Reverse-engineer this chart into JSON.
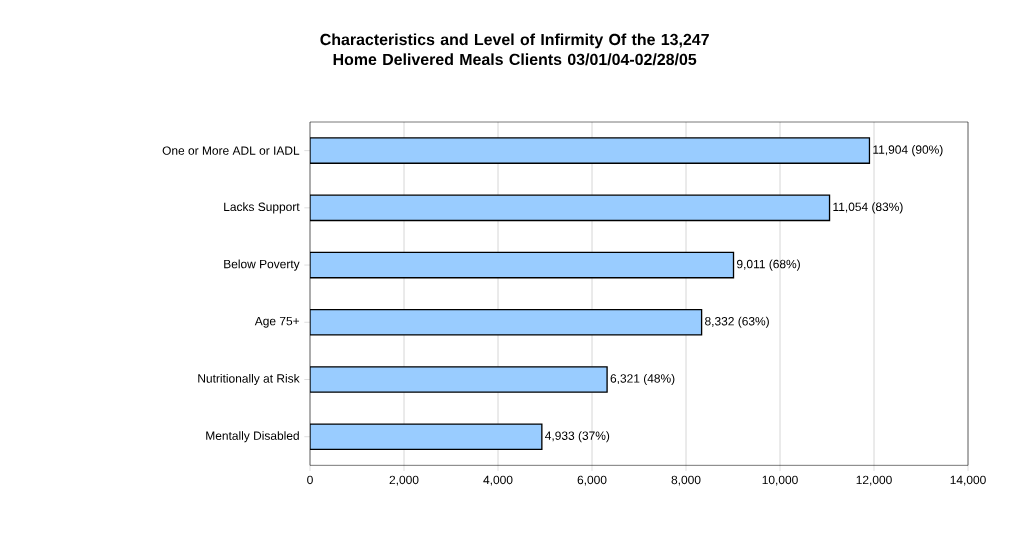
{
  "chart_data": {
    "type": "bar",
    "orientation": "horizontal",
    "title": "Characteristics and Level of Infirmity Of the 13,247 Home Delivered Meals Clients 03/01/04-02/28/05",
    "categories": [
      "One or More ADL or IADL",
      "Lacks Support",
      "Below Poverty",
      "Age 75+",
      "Nutritionally at Risk",
      "Mentally Disabled"
    ],
    "values": [
      11904,
      11054,
      9011,
      8332,
      6321,
      4933
    ],
    "value_labels": [
      "11,904 (90%)",
      "11,054 (83%)",
      "9,011 (68%)",
      "8,332 (63%)",
      "6,321 (48%)",
      "4,933 (37%)"
    ],
    "color": "#99ccff",
    "xlim": [
      0,
      14000
    ],
    "xticks": [
      0,
      {
        "value": 2000,
        "label": "2,000"
      },
      {
        "value": 4000,
        "label": "4,000"
      },
      {
        "value": 6000,
        "label": "6,000"
      },
      {
        "value": 8000,
        "label": "8,000"
      },
      {
        "value": 10000,
        "label": "10,000"
      },
      {
        "value": 12000,
        "label": "12,000"
      },
      {
        "value": 14000,
        "label": "14,000"
      }
    ],
    "grid": "x"
  }
}
